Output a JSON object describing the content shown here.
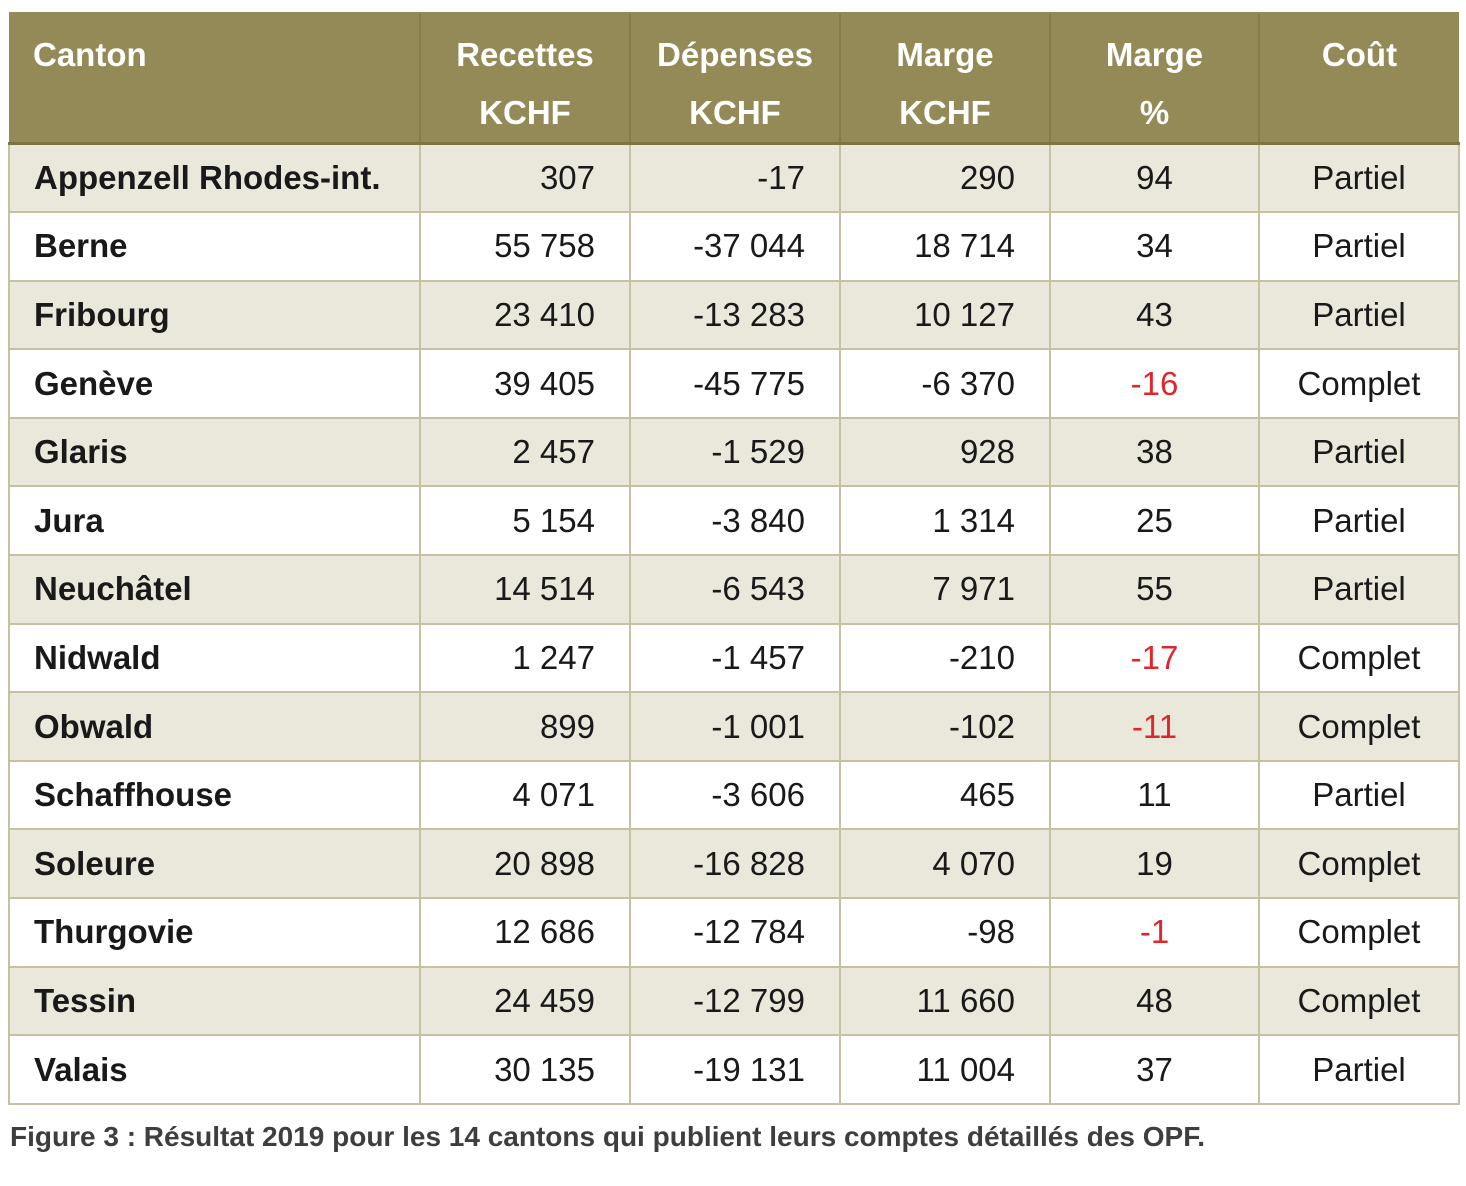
{
  "colors": {
    "header_bg": "#948a58",
    "header_text": "#ffffff",
    "header_separator": "#857b4c",
    "row_alt_bg": "#eae7db",
    "row_bg": "#ffffff",
    "border": "#c7c1a4",
    "negative_red": "#e0262b",
    "caption_text": "#3e3e3e"
  },
  "table": {
    "columns": [
      {
        "id": "canton",
        "line1": "Canton",
        "line2": ""
      },
      {
        "id": "recettes",
        "line1": "Recettes",
        "line2": "KCHF"
      },
      {
        "id": "depenses",
        "line1": "Dépenses",
        "line2": "KCHF"
      },
      {
        "id": "marge_kchf",
        "line1": "Marge",
        "line2": "KCHF"
      },
      {
        "id": "marge_pct",
        "line1": "Marge",
        "line2": "%"
      },
      {
        "id": "cout",
        "line1": "Coût",
        "line2": ""
      }
    ],
    "rows": [
      {
        "canton": "Appenzell Rhodes-int.",
        "recettes": "307",
        "depenses": "-17",
        "marge_kchf": "290",
        "marge_pct": "94",
        "cout": "Partiel"
      },
      {
        "canton": "Berne",
        "recettes": "55 758",
        "depenses": "-37 044",
        "marge_kchf": "18 714",
        "marge_pct": "34",
        "cout": "Partiel"
      },
      {
        "canton": "Fribourg",
        "recettes": "23 410",
        "depenses": "-13 283",
        "marge_kchf": "10 127",
        "marge_pct": "43",
        "cout": "Partiel"
      },
      {
        "canton": "Genève",
        "recettes": "39 405",
        "depenses": "-45 775",
        "marge_kchf": "-6 370",
        "marge_pct": "-16",
        "cout": "Complet"
      },
      {
        "canton": "Glaris",
        "recettes": "2 457",
        "depenses": "-1 529",
        "marge_kchf": "928",
        "marge_pct": "38",
        "cout": "Partiel"
      },
      {
        "canton": "Jura",
        "recettes": "5 154",
        "depenses": "-3 840",
        "marge_kchf": "1 314",
        "marge_pct": "25",
        "cout": "Partiel"
      },
      {
        "canton": "Neuchâtel",
        "recettes": "14 514",
        "depenses": "-6 543",
        "marge_kchf": "7 971",
        "marge_pct": "55",
        "cout": "Partiel"
      },
      {
        "canton": "Nidwald",
        "recettes": "1 247",
        "depenses": "-1 457",
        "marge_kchf": "-210",
        "marge_pct": "-17",
        "cout": "Complet"
      },
      {
        "canton": "Obwald",
        "recettes": "899",
        "depenses": "-1 001",
        "marge_kchf": "-102",
        "marge_pct": "-11",
        "cout": "Complet"
      },
      {
        "canton": "Schaffhouse",
        "recettes": "4 071",
        "depenses": "-3 606",
        "marge_kchf": "465",
        "marge_pct": "11",
        "cout": "Partiel"
      },
      {
        "canton": "Soleure",
        "recettes": "20 898",
        "depenses": "-16 828",
        "marge_kchf": "4 070",
        "marge_pct": "19",
        "cout": "Complet"
      },
      {
        "canton": "Thurgovie",
        "recettes": "12 686",
        "depenses": "-12 784",
        "marge_kchf": "-98",
        "marge_pct": "-1",
        "cout": "Complet"
      },
      {
        "canton": "Tessin",
        "recettes": "24 459",
        "depenses": "-12 799",
        "marge_kchf": "11 660",
        "marge_pct": "48",
        "cout": "Complet"
      },
      {
        "canton": "Valais",
        "recettes": "30 135",
        "depenses": "-19 131",
        "marge_kchf": "11 004",
        "marge_pct": "37",
        "cout": "Partiel"
      }
    ]
  },
  "caption": {
    "text": "Figure 3 : Résultat 2019 pour les 14 cantons qui publient leurs comptes détaillés des OPF."
  }
}
